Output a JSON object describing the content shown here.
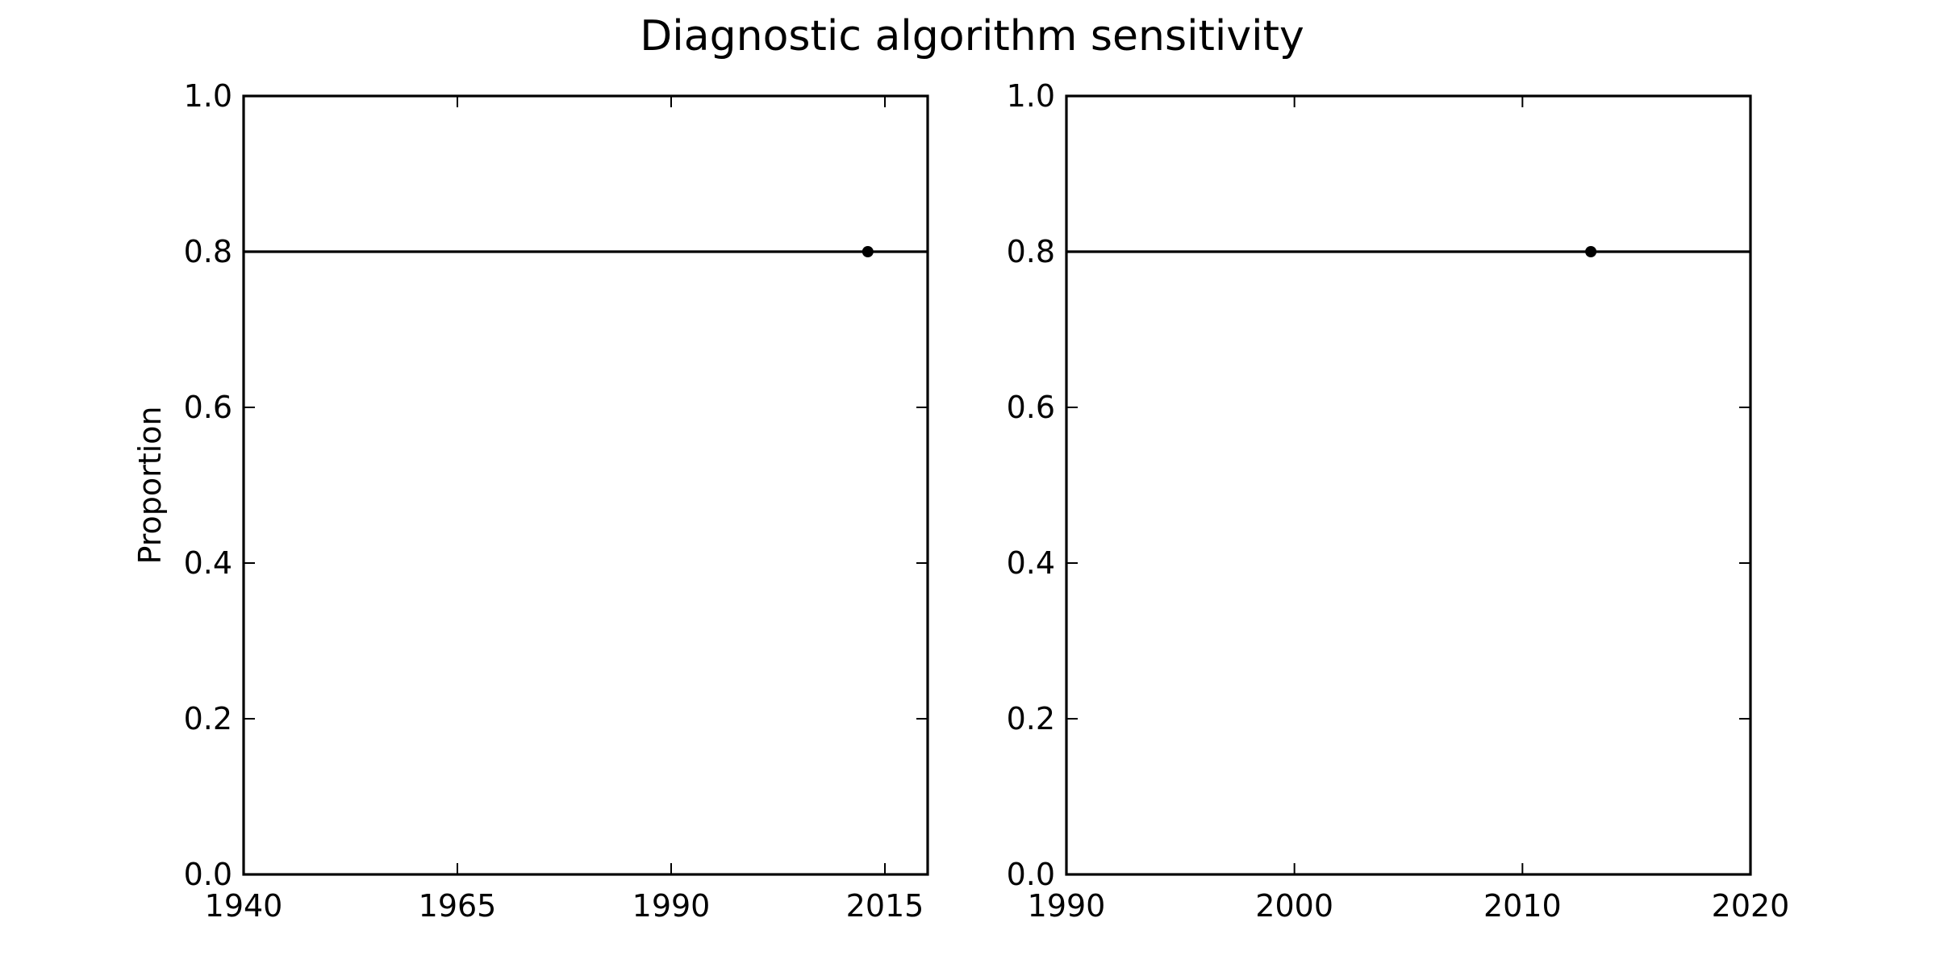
{
  "figure": {
    "title": "Diagnostic algorithm sensitivity"
  },
  "chart_data": [
    {
      "type": "line",
      "title": "",
      "xlabel": "",
      "ylabel": "Proportion",
      "xlim": [
        1940,
        2020
      ],
      "ylim": [
        0.0,
        1.0
      ],
      "xticks": [
        "1940",
        "1965",
        "1990",
        "2015"
      ],
      "yticks": [
        "0.0",
        "0.2",
        "0.4",
        "0.6",
        "0.8",
        "1.0"
      ],
      "grid": false,
      "reference_line": {
        "y": 0.8
      },
      "series": [
        {
          "x": [
            2013
          ],
          "y": [
            0.8
          ]
        }
      ]
    },
    {
      "type": "line",
      "title": "",
      "xlabel": "",
      "ylabel": "",
      "xlim": [
        1990,
        2020
      ],
      "ylim": [
        0.0,
        1.0
      ],
      "xticks": [
        "1990",
        "2000",
        "2010",
        "2020"
      ],
      "yticks": [
        "0.0",
        "0.2",
        "0.4",
        "0.6",
        "0.8",
        "1.0"
      ],
      "grid": false,
      "reference_line": {
        "y": 0.8
      },
      "series": [
        {
          "x": [
            2013
          ],
          "y": [
            0.8
          ]
        }
      ]
    }
  ]
}
